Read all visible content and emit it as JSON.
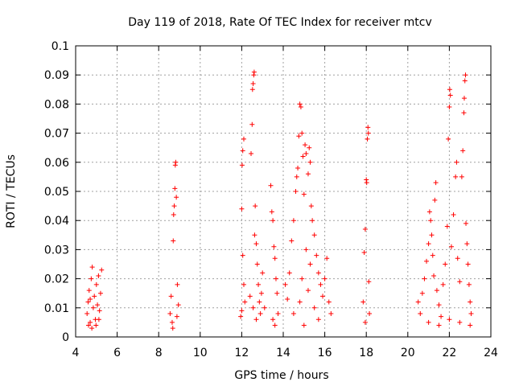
{
  "chart_data": {
    "type": "scatter",
    "title": "Day 119 of 2018, Rate Of TEC Index for receiver mtcv",
    "xlabel": "GPS time / hours",
    "ylabel": "ROTI / TECUs",
    "xlim": [
      4,
      24
    ],
    "ylim": [
      0,
      0.1
    ],
    "x_ticks": [
      4,
      6,
      8,
      10,
      12,
      14,
      16,
      18,
      20,
      22,
      24
    ],
    "y_ticks": [
      0,
      0.01,
      0.02,
      0.03,
      0.04,
      0.05,
      0.06,
      0.07,
      0.08,
      0.09,
      0.1
    ],
    "x_tick_labels": [
      "4",
      "6",
      "8",
      "10",
      "12",
      "14",
      "16",
      "18",
      "20",
      "22",
      "24"
    ],
    "y_tick_labels": [
      "0",
      "0.01",
      "0.02",
      "0.03",
      "0.04",
      "0.05",
      "0.06",
      "0.07",
      "0.08",
      "0.09",
      "0.1"
    ],
    "grid": true,
    "marker": "+",
    "color": "#ff0000",
    "series": [
      {
        "points": [
          [
            4.55,
            0.008
          ],
          [
            4.6,
            0.012
          ],
          [
            4.65,
            0.016
          ],
          [
            4.7,
            0.005
          ],
          [
            4.75,
            0.02
          ],
          [
            4.8,
            0.024
          ],
          [
            4.85,
            0.01
          ],
          [
            4.9,
            0.014
          ],
          [
            4.95,
            0.006
          ],
          [
            5.0,
            0.018
          ],
          [
            5.05,
            0.011
          ],
          [
            5.1,
            0.021
          ],
          [
            5.15,
            0.009
          ],
          [
            5.2,
            0.015
          ],
          [
            5.25,
            0.023
          ],
          [
            4.62,
            0.004
          ],
          [
            4.78,
            0.003
          ],
          [
            4.98,
            0.004
          ],
          [
            5.12,
            0.006
          ],
          [
            4.7,
            0.013
          ],
          [
            8.55,
            0.008
          ],
          [
            8.6,
            0.014
          ],
          [
            8.65,
            0.005
          ],
          [
            8.7,
            0.033
          ],
          [
            8.72,
            0.042
          ],
          [
            8.75,
            0.045
          ],
          [
            8.78,
            0.051
          ],
          [
            8.8,
            0.059
          ],
          [
            8.82,
            0.06
          ],
          [
            8.85,
            0.048
          ],
          [
            8.9,
            0.018
          ],
          [
            8.95,
            0.011
          ],
          [
            8.68,
            0.003
          ],
          [
            8.88,
            0.007
          ],
          [
            11.95,
            0.007
          ],
          [
            12.0,
            0.044
          ],
          [
            12.02,
            0.059
          ],
          [
            12.05,
            0.064
          ],
          [
            12.1,
            0.068
          ],
          [
            12.05,
            0.028
          ],
          [
            12.1,
            0.018
          ],
          [
            12.15,
            0.012
          ],
          [
            12.0,
            0.009
          ],
          [
            12.4,
            0.014
          ],
          [
            12.45,
            0.063
          ],
          [
            12.5,
            0.073
          ],
          [
            12.52,
            0.085
          ],
          [
            12.55,
            0.087
          ],
          [
            12.58,
            0.09
          ],
          [
            12.6,
            0.091
          ],
          [
            12.62,
            0.035
          ],
          [
            12.65,
            0.045
          ],
          [
            12.7,
            0.032
          ],
          [
            12.75,
            0.025
          ],
          [
            12.8,
            0.018
          ],
          [
            12.85,
            0.012
          ],
          [
            12.9,
            0.008
          ],
          [
            12.95,
            0.015
          ],
          [
            13.0,
            0.022
          ],
          [
            13.1,
            0.01
          ],
          [
            12.7,
            0.006
          ],
          [
            12.55,
            0.01
          ],
          [
            13.4,
            0.052
          ],
          [
            13.45,
            0.043
          ],
          [
            13.5,
            0.04
          ],
          [
            13.55,
            0.031
          ],
          [
            13.6,
            0.027
          ],
          [
            13.65,
            0.02
          ],
          [
            13.7,
            0.015
          ],
          [
            13.75,
            0.008
          ],
          [
            13.5,
            0.006
          ],
          [
            13.6,
            0.004
          ],
          [
            14.1,
            0.018
          ],
          [
            14.2,
            0.013
          ],
          [
            14.3,
            0.022
          ],
          [
            14.4,
            0.033
          ],
          [
            14.5,
            0.04
          ],
          [
            14.6,
            0.05
          ],
          [
            14.65,
            0.055
          ],
          [
            14.7,
            0.058
          ],
          [
            14.75,
            0.069
          ],
          [
            14.8,
            0.08
          ],
          [
            14.85,
            0.079
          ],
          [
            14.9,
            0.07
          ],
          [
            14.95,
            0.062
          ],
          [
            15.0,
            0.049
          ],
          [
            15.05,
            0.066
          ],
          [
            15.1,
            0.063
          ],
          [
            15.2,
            0.056
          ],
          [
            15.25,
            0.065
          ],
          [
            15.3,
            0.06
          ],
          [
            15.35,
            0.045
          ],
          [
            15.4,
            0.04
          ],
          [
            15.5,
            0.035
          ],
          [
            15.6,
            0.028
          ],
          [
            15.7,
            0.022
          ],
          [
            15.8,
            0.018
          ],
          [
            15.9,
            0.014
          ],
          [
            16.0,
            0.02
          ],
          [
            16.1,
            0.027
          ],
          [
            16.2,
            0.012
          ],
          [
            16.3,
            0.008
          ],
          [
            14.9,
            0.02
          ],
          [
            15.1,
            0.03
          ],
          [
            15.3,
            0.025
          ],
          [
            15.5,
            0.01
          ],
          [
            15.7,
            0.006
          ],
          [
            14.5,
            0.008
          ],
          [
            14.8,
            0.012
          ],
          [
            15.0,
            0.004
          ],
          [
            15.2,
            0.016
          ],
          [
            17.85,
            0.012
          ],
          [
            17.9,
            0.029
          ],
          [
            17.95,
            0.037
          ],
          [
            18.0,
            0.054
          ],
          [
            18.02,
            0.053
          ],
          [
            18.05,
            0.068
          ],
          [
            18.08,
            0.072
          ],
          [
            18.1,
            0.07
          ],
          [
            18.12,
            0.019
          ],
          [
            18.15,
            0.008
          ],
          [
            17.95,
            0.005
          ],
          [
            20.5,
            0.012
          ],
          [
            20.6,
            0.008
          ],
          [
            20.7,
            0.015
          ],
          [
            20.8,
            0.02
          ],
          [
            20.9,
            0.026
          ],
          [
            21.0,
            0.032
          ],
          [
            21.05,
            0.043
          ],
          [
            21.1,
            0.04
          ],
          [
            21.15,
            0.035
          ],
          [
            21.2,
            0.028
          ],
          [
            21.25,
            0.021
          ],
          [
            21.3,
            0.047
          ],
          [
            21.35,
            0.053
          ],
          [
            21.4,
            0.016
          ],
          [
            21.5,
            0.011
          ],
          [
            21.6,
            0.007
          ],
          [
            21.7,
            0.018
          ],
          [
            21.8,
            0.025
          ],
          [
            21.9,
            0.038
          ],
          [
            21.95,
            0.068
          ],
          [
            22.0,
            0.079
          ],
          [
            22.02,
            0.085
          ],
          [
            22.05,
            0.083
          ],
          [
            22.1,
            0.031
          ],
          [
            22.2,
            0.042
          ],
          [
            22.3,
            0.055
          ],
          [
            22.35,
            0.06
          ],
          [
            22.4,
            0.027
          ],
          [
            22.5,
            0.019
          ],
          [
            22.6,
            0.055
          ],
          [
            22.65,
            0.064
          ],
          [
            22.7,
            0.077
          ],
          [
            22.72,
            0.082
          ],
          [
            22.75,
            0.088
          ],
          [
            22.78,
            0.09
          ],
          [
            22.8,
            0.039
          ],
          [
            22.85,
            0.032
          ],
          [
            22.9,
            0.025
          ],
          [
            22.95,
            0.018
          ],
          [
            23.0,
            0.012
          ],
          [
            23.05,
            0.008
          ],
          [
            21.0,
            0.005
          ],
          [
            21.5,
            0.004
          ],
          [
            22.0,
            0.006
          ],
          [
            22.5,
            0.005
          ],
          [
            23.0,
            0.004
          ]
        ]
      }
    ]
  }
}
